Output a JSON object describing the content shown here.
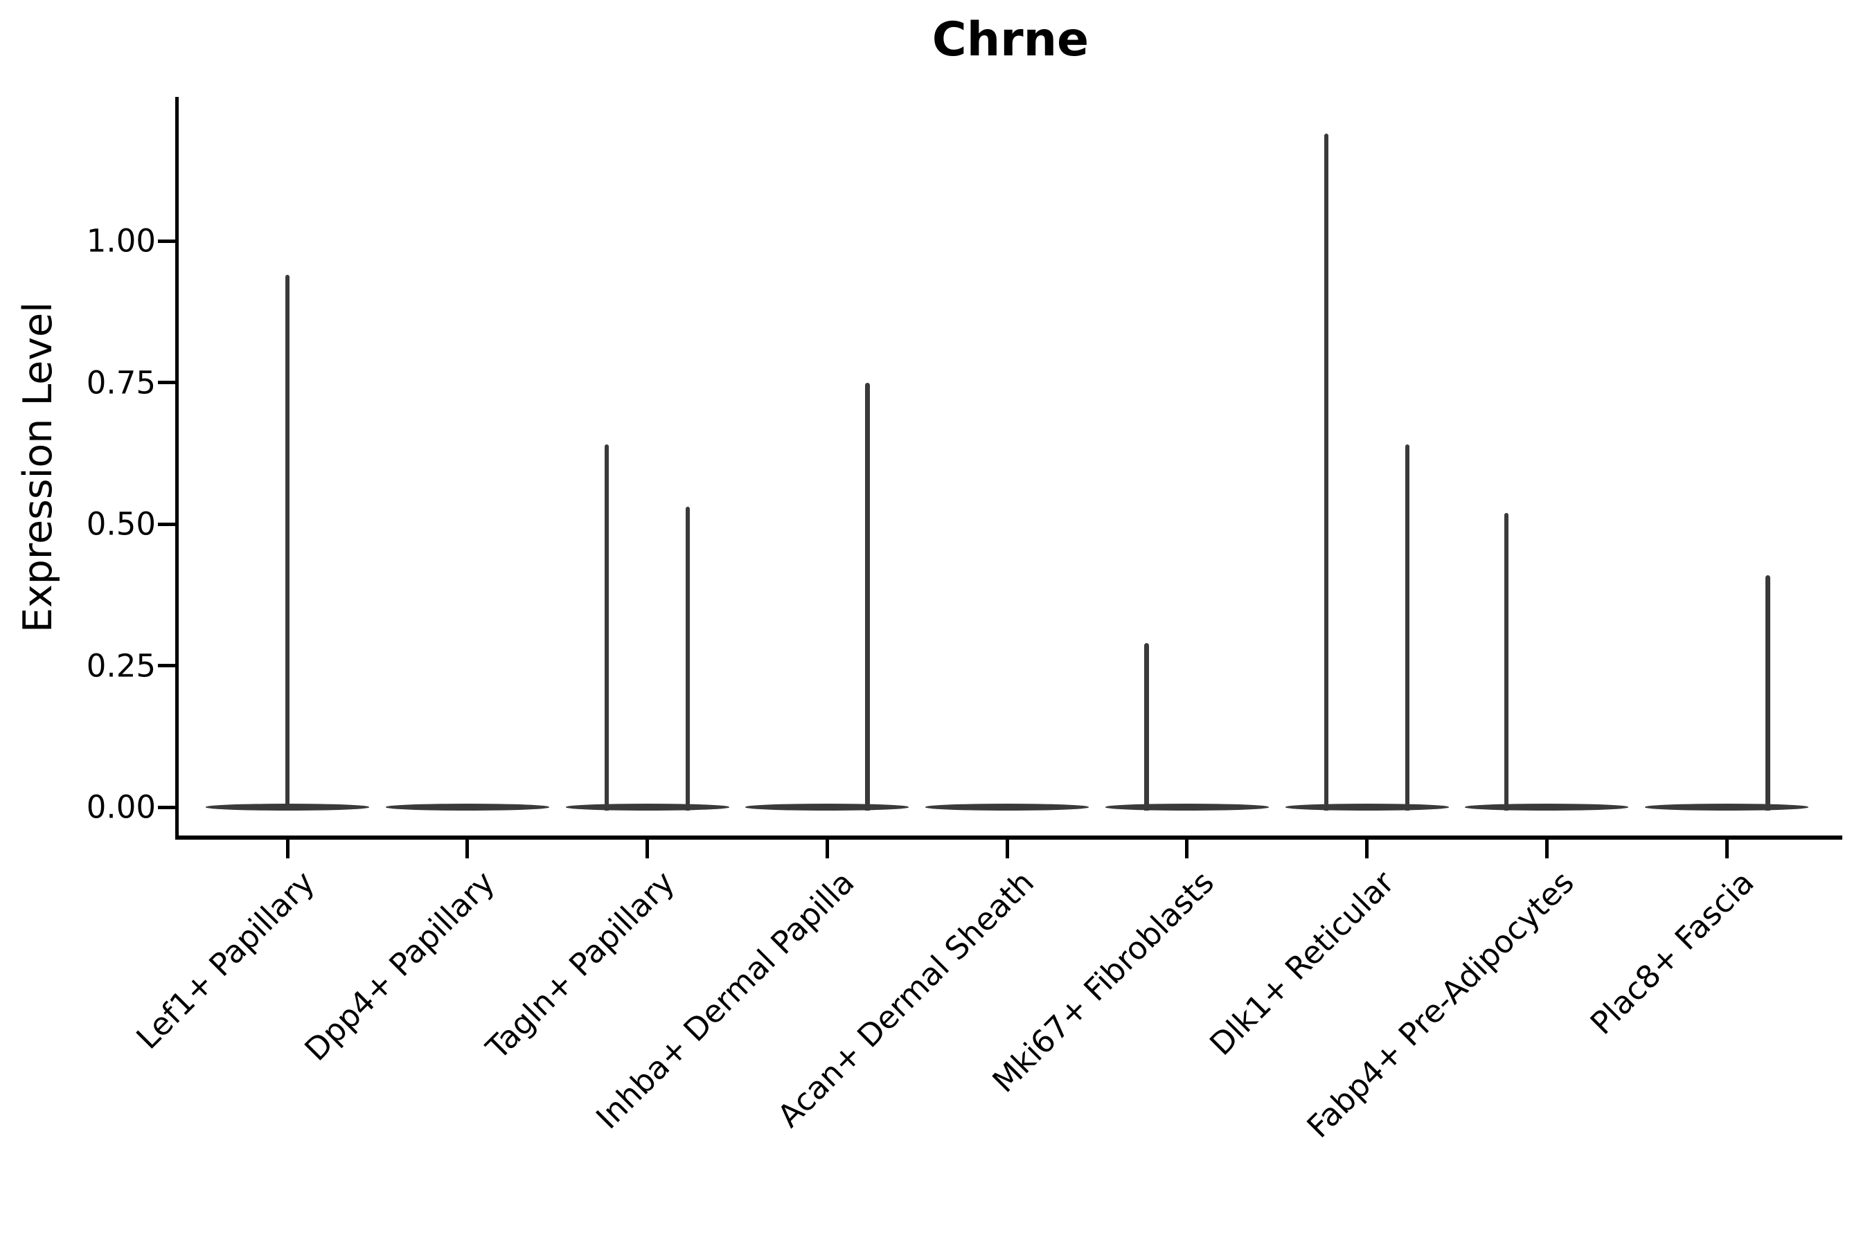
{
  "chart_data": {
    "type": "violin",
    "title": "Chrne",
    "ylabel": "Expression Level",
    "xlabel": "",
    "ylim": [
      0,
      1.25
    ],
    "grid": false,
    "legend": "none",
    "yticks": [
      {
        "value": 0.0,
        "label": "0.00"
      },
      {
        "value": 0.25,
        "label": "0.25"
      },
      {
        "value": 0.5,
        "label": "0.50"
      },
      {
        "value": 0.75,
        "label": "0.75"
      },
      {
        "value": 1.0,
        "label": "1.00"
      }
    ],
    "categories": [
      "Lef1+ Papillary",
      "Dpp4+ Papillary",
      "Tagln+ Papillary",
      "Inhba+ Dermal Papilla",
      "Acan+ Dermal Sheath",
      "Mki67+ Fibroblasts",
      "Dlk1+ Reticular",
      "Fabp4+ Pre-Adipocytes",
      "Plac8+ Fascia"
    ],
    "violins": [
      {
        "category": "Lef1+ Papillary",
        "baseline_value": 0,
        "spikes": [
          {
            "offset": 0.0,
            "max": 0.94
          }
        ]
      },
      {
        "category": "Dpp4+ Papillary",
        "baseline_value": 0,
        "spikes": []
      },
      {
        "category": "Tagln+ Papillary",
        "baseline_value": 0,
        "spikes": [
          {
            "offset": -0.225,
            "max": 0.64
          },
          {
            "offset": 0.225,
            "max": 0.53
          }
        ]
      },
      {
        "category": "Inhba+ Dermal Papilla",
        "baseline_value": 0,
        "spikes": [
          {
            "offset": 0.225,
            "max": 0.75
          }
        ]
      },
      {
        "category": "Acan+ Dermal Sheath",
        "baseline_value": 0,
        "spikes": []
      },
      {
        "category": "Mki67+ Fibroblasts",
        "baseline_value": 0,
        "spikes": [
          {
            "offset": -0.225,
            "max": 0.29
          }
        ]
      },
      {
        "category": "Dlk1+ Reticular",
        "baseline_value": 0,
        "spikes": [
          {
            "offset": -0.225,
            "max": 1.19
          },
          {
            "offset": 0.225,
            "max": 0.64
          }
        ]
      },
      {
        "category": "Fabp4+ Pre-Adipocytes",
        "baseline_value": 0,
        "spikes": [
          {
            "offset": -0.225,
            "max": 0.52
          }
        ]
      },
      {
        "category": "Plac8+ Fascia",
        "baseline_value": 0,
        "spikes": [
          {
            "offset": 0.23,
            "max": 0.41
          }
        ]
      }
    ],
    "colors": {
      "violin": "#3a3a3a",
      "axis": "#000000",
      "text": "#000000",
      "background": "#ffffff"
    }
  }
}
